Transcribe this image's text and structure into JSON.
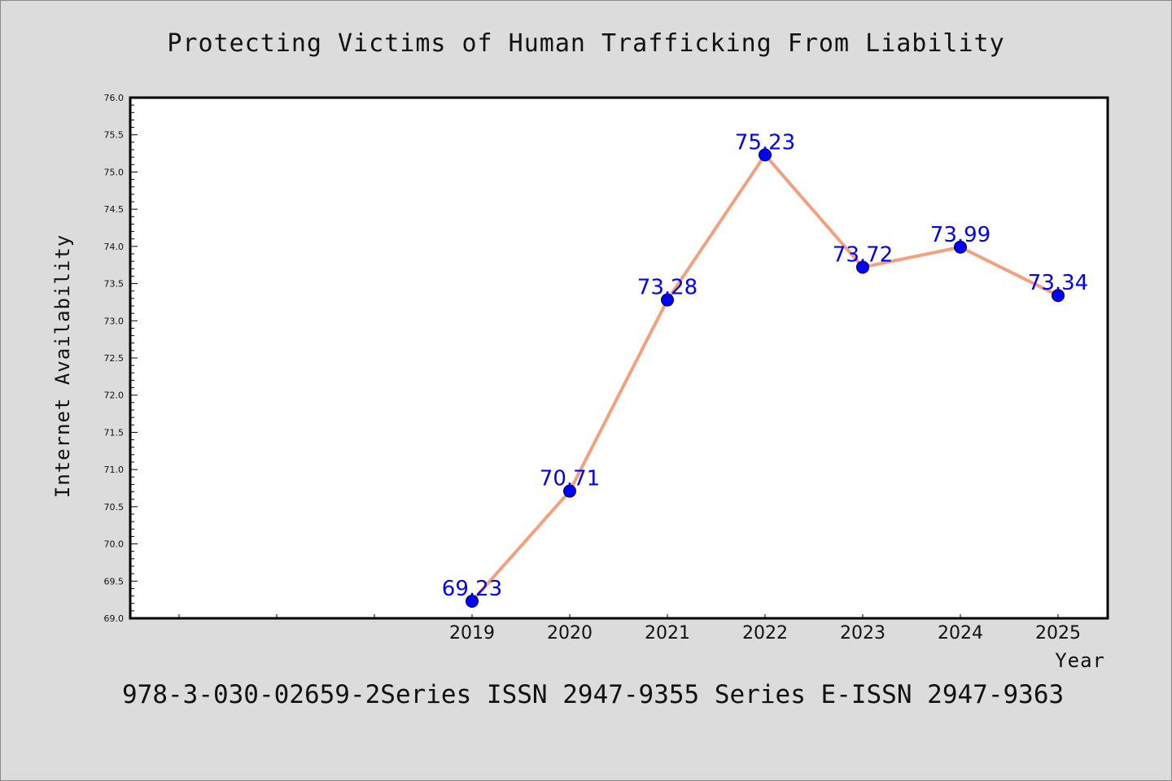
{
  "chart_data": {
    "type": "line",
    "title": "Protecting Victims of Human Trafficking From Liability",
    "xlabel": "Year",
    "ylabel": "Internet Availability",
    "categories": [
      "2019",
      "2020",
      "2021",
      "2022",
      "2023",
      "2024",
      "2025"
    ],
    "series": [
      {
        "values": [
          69.23,
          70.71,
          73.28,
          75.23,
          73.72,
          73.99,
          73.34
        ]
      }
    ],
    "data_labels": [
      "69.23",
      "70.71",
      "73.28",
      "75.23",
      "73.72",
      "73.99",
      "73.34"
    ],
    "ylim": [
      69.0,
      76.0
    ],
    "yticks": [
      "69.0",
      "69.5",
      "70.0",
      "70.5",
      "71.0",
      "71.5",
      "72.0",
      "72.5",
      "73.0",
      "73.5",
      "74.0",
      "74.5",
      "75.0",
      "75.5",
      "76.0"
    ],
    "grid": false,
    "legend": "none"
  },
  "footer": {
    "text": "978-3-030-02659-2Series ISSN 2947-9355 Series E-ISSN 2947-9363"
  },
  "colors": {
    "background": "#dcdcdc",
    "plot_background": "#ffffff",
    "line": "#f4a07e",
    "marker": "#0000ff",
    "data_label": "#0000ff"
  }
}
